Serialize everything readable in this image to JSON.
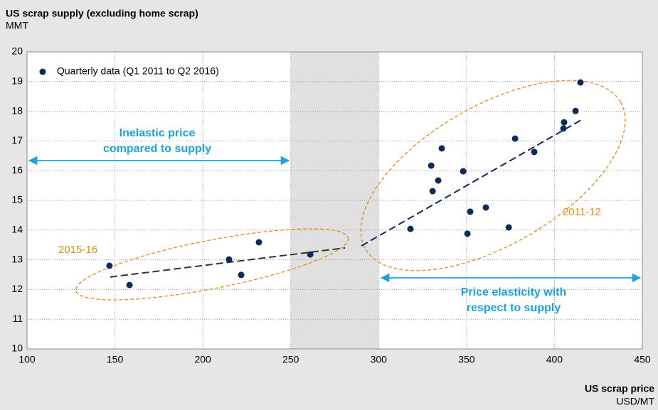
{
  "chart_data": {
    "type": "scatter",
    "title": "US scrap supply (excluding home scrap)",
    "subtitle": "MMT",
    "x_label": "US scrap price",
    "x_unit": "USD/MT",
    "xlim": [
      100,
      450
    ],
    "xticks": [
      100,
      150,
      200,
      250,
      300,
      350,
      400,
      450
    ],
    "ylim": [
      10,
      20
    ],
    "yticks": [
      10,
      11,
      12,
      13,
      14,
      15,
      16,
      17,
      18,
      19,
      20
    ],
    "grid": true,
    "legend": "top-left",
    "highlight_xlim": [
      250,
      300
    ],
    "series": [
      {
        "name": "Quarterly data (Q1 2011 to Q2 2016)",
        "color": "#0d2a5e",
        "x": [
          146.9,
          158.3,
          214.9,
          221.8,
          231.9,
          261.1,
          318.1,
          329.9,
          330.7,
          333.9,
          335.9,
          348.1,
          352.1,
          350.5,
          361.0,
          374.0,
          377.6,
          388.5,
          405.1,
          405.5,
          412.0,
          414.8
        ],
        "values": [
          12.8,
          12.15,
          13.01,
          12.49,
          13.59,
          13.18,
          14.04,
          16.17,
          15.31,
          15.67,
          16.75,
          15.98,
          14.62,
          13.88,
          14.76,
          14.09,
          17.08,
          16.63,
          17.42,
          17.63,
          18.01,
          18.97
        ]
      }
    ],
    "trend_lines": [
      {
        "color": "#333333",
        "x": [
          147.3,
          280.9
        ],
        "values": [
          12.42,
          13.4
        ]
      },
      {
        "color": "#0d2a5e",
        "x": [
          290.2,
          416.5
        ],
        "values": [
          13.47,
          17.75
        ]
      }
    ],
    "annotations": {
      "period_2015": "2015-16",
      "period_2011": "2011-12",
      "inelastic": [
        "Inelastic price",
        "compared to supply"
      ],
      "elastic": [
        "Price elasticity with",
        "respect to supply"
      ]
    }
  }
}
